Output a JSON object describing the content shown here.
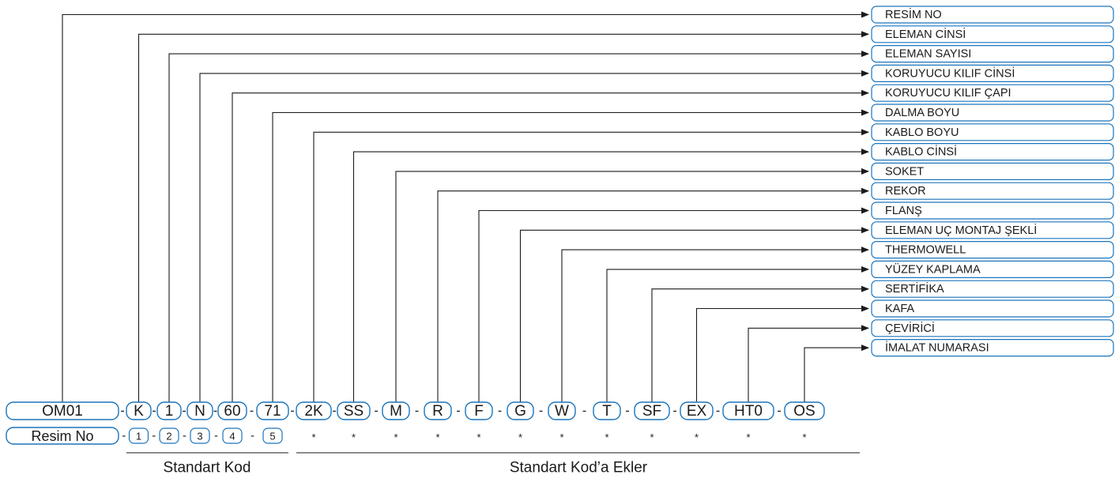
{
  "main_code": {
    "prefix": "OM01",
    "separator": "-",
    "codes": [
      "K",
      "1",
      "N",
      "60",
      "71",
      "2K",
      "SS",
      "M",
      "R",
      "F",
      "G",
      "W",
      "T",
      "SF",
      "EX",
      "HT0",
      "OS"
    ]
  },
  "index_row": {
    "label": "Resim No",
    "numbers": [
      "1",
      "2",
      "3",
      "4",
      "5"
    ],
    "marker": "*"
  },
  "group_labels": {
    "standard": "Standart Kod",
    "extras": "Standart Kod’a Ekler"
  },
  "callouts": [
    "RESİM NO",
    "ELEMAN CİNSİ",
    "ELEMAN SAYISI",
    "KORUYUCU KILIF CİNSİ",
    "KORUYUCU KILIF ÇAPI",
    "DALMA BOYU",
    "KABLO BOYU",
    "KABLO CİNSİ",
    "SOKET",
    "REKOR",
    "FLANŞ",
    "ELEMAN UÇ MONTAJ ŞEKLİ",
    "THERMOWELL",
    "YÜZEY KAPLAMA",
    "SERTİFİKA",
    "KAFA",
    "ÇEVİRİCİ",
    "İMALAT NUMARASI"
  ],
  "colors": {
    "box_border": "#1b75bc",
    "line": "#1a1a1a",
    "text": "#1a1a1a"
  }
}
